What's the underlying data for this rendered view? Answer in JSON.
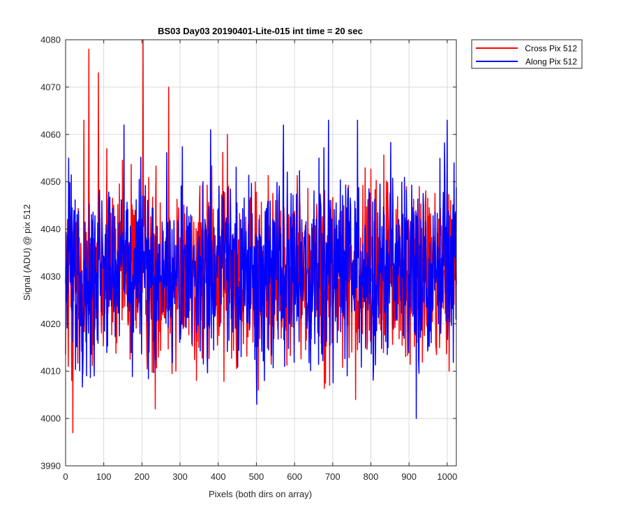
{
  "chart_data": {
    "type": "line",
    "title": "BS03 Day03 20190401-Lite-015 int time = 20 sec",
    "xlabel": "Pixels (both dirs on array)",
    "ylabel": "Signal (ADU) @ pix 512",
    "xlim": [
      0,
      1024
    ],
    "ylim": [
      3990,
      4080
    ],
    "xticks": [
      0,
      100,
      200,
      300,
      400,
      500,
      600,
      700,
      800,
      900,
      1000
    ],
    "yticks": [
      3990,
      4000,
      4010,
      4020,
      4030,
      4040,
      4050,
      4060,
      4070,
      4080
    ],
    "grid": true,
    "legend_position": "outside-top-right",
    "noise": {
      "center": 4031,
      "typical_range": [
        4016,
        4046
      ]
    },
    "series": [
      {
        "name": "Cross Pix 512",
        "color": "#ff0000",
        "seed": 12345,
        "spikes": [
          {
            "x": 19,
            "y": 3997
          },
          {
            "x": 16,
            "y": 4008
          },
          {
            "x": 7,
            "y": 4011
          },
          {
            "x": 48,
            "y": 4063
          },
          {
            "x": 61,
            "y": 4078
          },
          {
            "x": 86,
            "y": 4073
          },
          {
            "x": 108,
            "y": 4057
          },
          {
            "x": 203,
            "y": 4080
          },
          {
            "x": 235,
            "y": 4002
          },
          {
            "x": 270,
            "y": 4070
          },
          {
            "x": 289,
            "y": 4010
          },
          {
            "x": 343,
            "y": 4008
          },
          {
            "x": 424,
            "y": 4060
          },
          {
            "x": 505,
            "y": 4006
          },
          {
            "x": 692,
            "y": 4007
          },
          {
            "x": 760,
            "y": 4004
          },
          {
            "x": 1005,
            "y": 4010
          }
        ]
      },
      {
        "name": "Along Pix 512",
        "color": "#0000ff",
        "seed": 67890,
        "spikes": [
          {
            "x": 8,
            "y": 4055
          },
          {
            "x": 55,
            "y": 4009
          },
          {
            "x": 75,
            "y": 4009
          },
          {
            "x": 153,
            "y": 4062
          },
          {
            "x": 202,
            "y": 4047
          },
          {
            "x": 380,
            "y": 4061
          },
          {
            "x": 501,
            "y": 4003
          },
          {
            "x": 521,
            "y": 4008
          },
          {
            "x": 574,
            "y": 4011
          },
          {
            "x": 571,
            "y": 4062
          },
          {
            "x": 689,
            "y": 4063
          },
          {
            "x": 738,
            "y": 4009
          },
          {
            "x": 765,
            "y": 4063
          },
          {
            "x": 919,
            "y": 4000
          },
          {
            "x": 1000,
            "y": 4063
          },
          {
            "x": 1018,
            "y": 4054
          }
        ]
      }
    ]
  }
}
